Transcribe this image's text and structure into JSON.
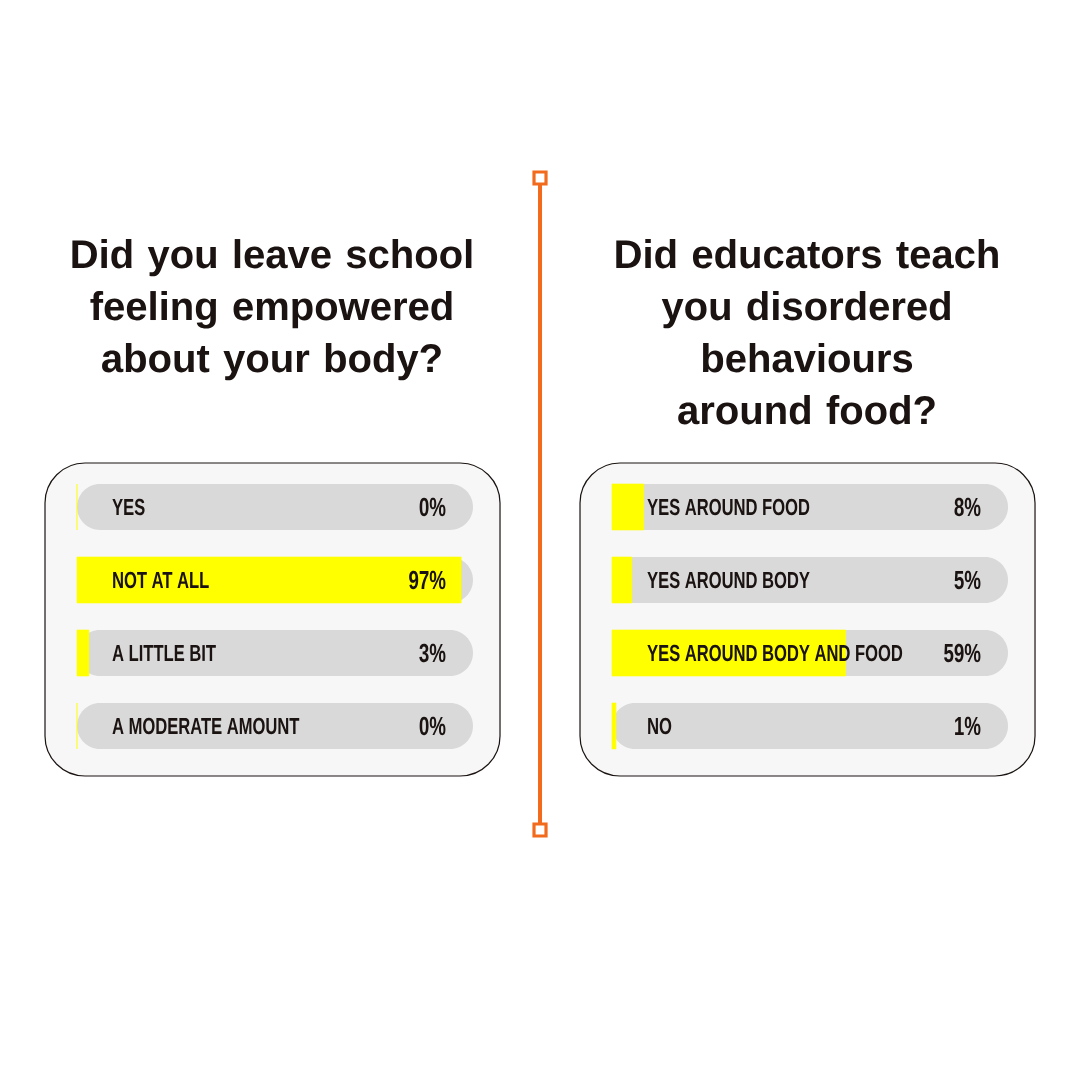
{
  "chart_data": [
    {
      "type": "bar",
      "orientation": "horizontal",
      "title": "Did you leave school feeling empowered about your body?",
      "categories": [
        "YES",
        "NOT  AT ALL",
        "A LITTLE BIT",
        "A MODERATE AMOUNT"
      ],
      "values": [
        0,
        97,
        3,
        0
      ],
      "value_labels": [
        "0%",
        "97%",
        "3%",
        "0%"
      ],
      "color": "#ffff00",
      "xlim": [
        0,
        100
      ],
      "tick_labels": "y"
    },
    {
      "type": "bar",
      "orientation": "horizontal",
      "title": "Did educators teach you disordered behaviours around food?",
      "categories": [
        "YES AROUND FOOD",
        "YES AROUND BODY",
        "YES AROUND BODY AND FOOD",
        "NO"
      ],
      "values": [
        8,
        5,
        59,
        1
      ],
      "value_labels": [
        "8%",
        "5%",
        "59%",
        "1%"
      ],
      "color": "#ffff00",
      "xlim": [
        0,
        100
      ],
      "tick_labels": "y"
    }
  ]
}
